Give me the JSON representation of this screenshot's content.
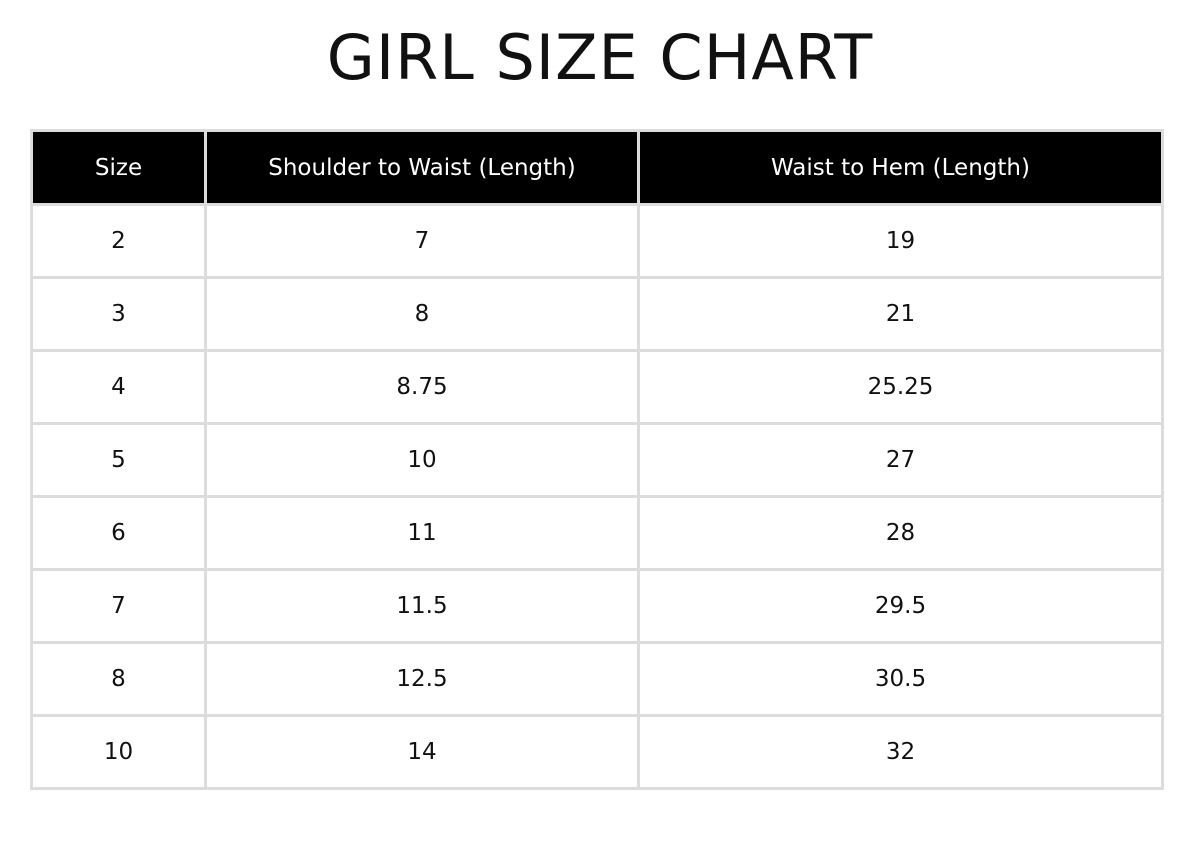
{
  "title": "GIRL SIZE CHART",
  "table": {
    "headers": [
      "Size",
      "Shoulder to Waist (Length)",
      "Waist to Hem (Length)"
    ],
    "rows": [
      [
        "2",
        "7",
        "19"
      ],
      [
        "3",
        "8",
        "21"
      ],
      [
        "4",
        "8.75",
        "25.25"
      ],
      [
        "5",
        "10",
        "27"
      ],
      [
        "6",
        "11",
        "28"
      ],
      [
        "7",
        "11.5",
        "29.5"
      ],
      [
        "8",
        "12.5",
        "30.5"
      ],
      [
        "10",
        "14",
        "32"
      ]
    ]
  },
  "colors": {
    "header_bg": "#000000",
    "header_text": "#ffffff",
    "border": "#dcdcdc"
  }
}
